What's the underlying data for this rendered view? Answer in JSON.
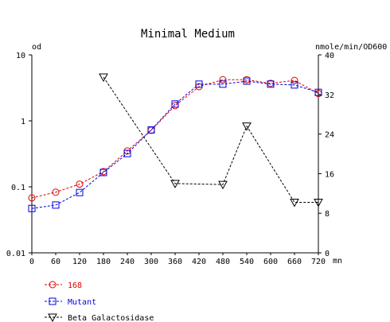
{
  "chart_data": {
    "type": "line",
    "title": "Minimal Medium",
    "x_unit": "mn",
    "x_ticks": [
      0,
      60,
      120,
      180,
      240,
      300,
      360,
      420,
      480,
      540,
      600,
      660,
      720
    ],
    "xlim": [
      0,
      720
    ],
    "y_left": {
      "label": "od",
      "scale": "log",
      "ylim": [
        0.01,
        10
      ],
      "ticks": [
        {
          "value": 10,
          "label": "10"
        },
        {
          "value": 1,
          "label": "1"
        },
        {
          "value": 0.1,
          "label": "0.1"
        },
        {
          "value": 0.01,
          "label": "0.01"
        }
      ]
    },
    "y_right": {
      "label": "nmole/min/OD600",
      "scale": "linear",
      "ylim": [
        0,
        40
      ],
      "ticks": [
        0,
        8,
        16,
        24,
        32,
        40
      ]
    },
    "grid": false,
    "legend_position": "bottom-left",
    "series": [
      {
        "name": "168",
        "axis": "left",
        "color": "#e00000",
        "marker": "circle",
        "x": [
          0,
          60,
          120,
          180,
          240,
          300,
          360,
          420,
          480,
          540,
          600,
          660,
          720
        ],
        "y": [
          0.068,
          0.083,
          0.11,
          0.17,
          0.35,
          0.72,
          1.7,
          3.3,
          4.2,
          4.2,
          3.7,
          4.1,
          2.6
        ]
      },
      {
        "name": "Mutant",
        "axis": "left",
        "color": "#0000e0",
        "marker": "square",
        "x": [
          0,
          60,
          120,
          180,
          240,
          300,
          360,
          420,
          480,
          540,
          600,
          660,
          720
        ],
        "y": [
          0.047,
          0.053,
          0.082,
          0.165,
          0.32,
          0.73,
          1.8,
          3.6,
          3.6,
          4.0,
          3.6,
          3.5,
          2.7
        ]
      },
      {
        "name": "Beta Galactosidase",
        "axis": "right",
        "color": "#000000",
        "marker": "triangle-down",
        "x": [
          180,
          360,
          480,
          540,
          660,
          720
        ],
        "y": [
          35.5,
          14,
          13.8,
          25.6,
          10.2,
          10.2
        ]
      }
    ]
  }
}
